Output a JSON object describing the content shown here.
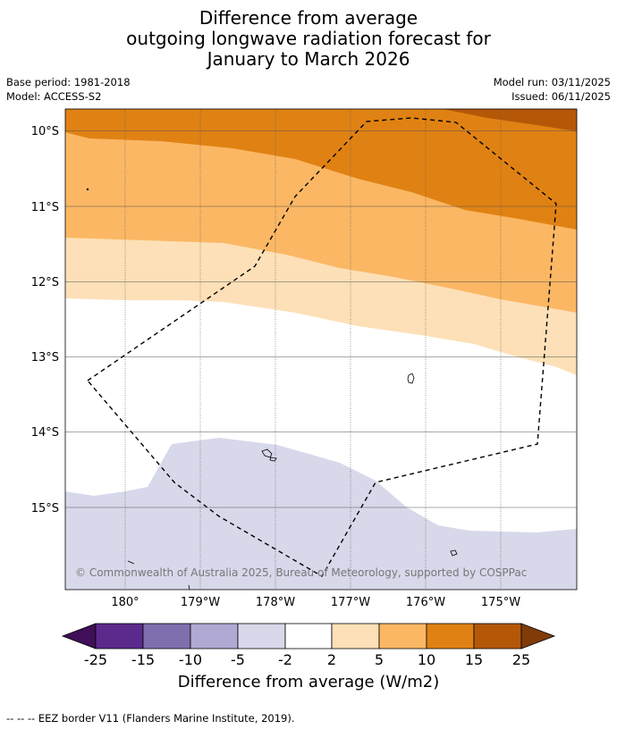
{
  "title": {
    "line1": "Difference from average",
    "line2": "outgoing longwave radiation forecast for",
    "line3": "January to March 2026"
  },
  "meta": {
    "base_period": "Base period: 1981-2018",
    "model": "Model: ACCESS-S2",
    "model_run": "Model run: 03/11/2025",
    "issued": "Issued: 06/11/2025"
  },
  "axes": {
    "lat_labels": [
      "10°S",
      "11°S",
      "12°S",
      "13°S",
      "14°S",
      "15°S"
    ],
    "lon_labels": [
      "180°",
      "179°W",
      "178°W",
      "177°W",
      "176°W",
      "175°W"
    ]
  },
  "copyright": "© Commonwealth of Australia 2025, Bureau of Meteorology, supported by COSPPac",
  "colorbar": {
    "ticks": [
      "-25",
      "-15",
      "-10",
      "-5",
      "-2",
      "2",
      "5",
      "10",
      "15",
      "25"
    ],
    "colors": [
      "#3f0f57",
      "#5c2a8c",
      "#7f6fae",
      "#b0a9d3",
      "#d7d8ea",
      "#ffffff",
      "#fde0b7",
      "#fbb764",
      "#e08213",
      "#b45808",
      "#7f3b08"
    ],
    "title": "Difference from average (W/m2)"
  },
  "footnote": "-- -- -- EEZ border V11 (Flanders Marine Institute, 2019)."
}
